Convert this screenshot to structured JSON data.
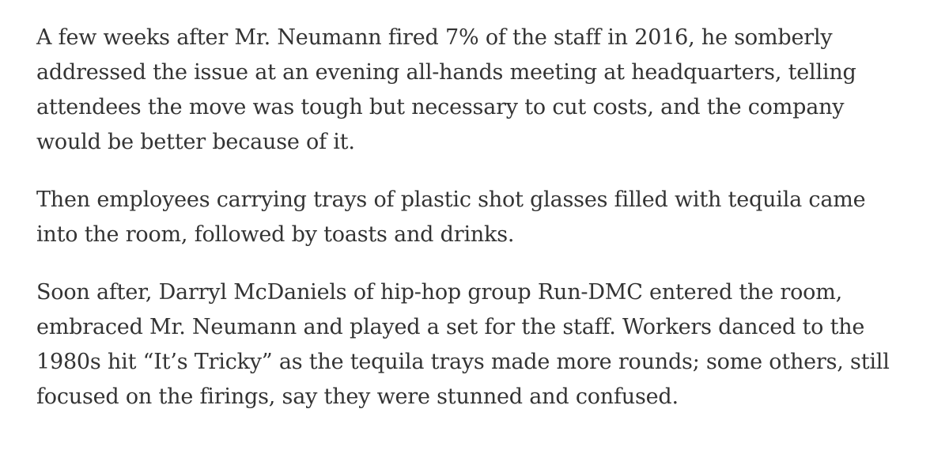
{
  "article": {
    "paragraphs": [
      {
        "lines": [
          "A few weeks after Mr. Neumann fired 7% of the staff in 2016, he somberly",
          "addressed the issue at an evening all-hands meeting at headquarters, telling",
          "attendees the move was tough but necessary to cut costs, and the company",
          "would be better because of it."
        ]
      },
      {
        "lines": [
          "Then employees carrying trays of plastic shot glasses filled with tequila came",
          "into the room, followed by toasts and drinks."
        ]
      },
      {
        "lines": [
          "Soon after, Darryl McDaniels of hip-hop group Run-DMC entered the room,",
          "embraced Mr. Neumann and played a set for the staff. Workers danced to the",
          "1980s hit “It’s Tricky” as the tequila trays made more rounds; some others, still",
          "focused on the firings, say they were stunned and confused."
        ]
      }
    ]
  }
}
